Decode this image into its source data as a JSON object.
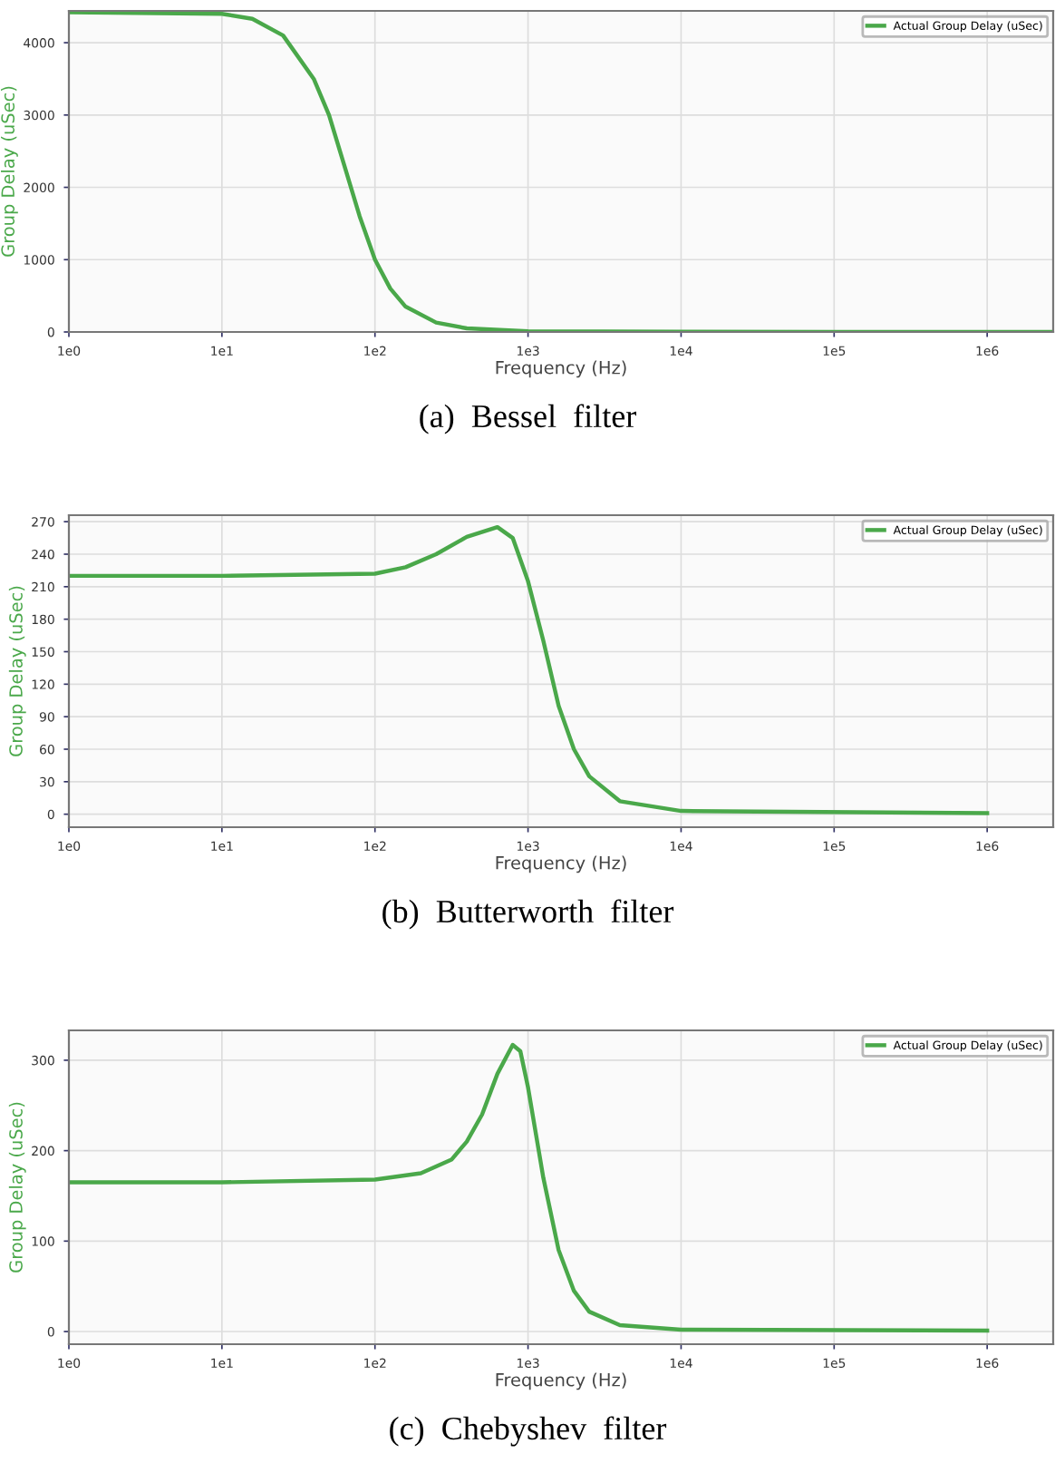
{
  "chart_data": [
    {
      "type": "line",
      "xlabel": "Frequency (Hz)",
      "ylabel": "Group Delay (uSec)",
      "log": "x",
      "xlim": [
        1,
        2700000
      ],
      "xticks": [
        {
          "value": 1,
          "label": "1e0"
        },
        {
          "value": 10,
          "label": "1e1"
        },
        {
          "value": 100,
          "label": "1e2"
        },
        {
          "value": 1000,
          "label": "1e3"
        },
        {
          "value": 10000,
          "label": "1e4"
        },
        {
          "value": 100000,
          "label": "1e5"
        },
        {
          "value": 1000000,
          "label": "1e6"
        }
      ],
      "ylim": [
        0,
        4440
      ],
      "yticks": [
        0,
        1000,
        2000,
        3000,
        4000
      ],
      "grid": true,
      "legend": "top right",
      "annotations": [
        "(a)  Bessel  filter"
      ],
      "series": [
        {
          "name": "Actual Group Delay (uSec)",
          "color": "#4aa84a",
          "x": [
            1,
            10,
            15.8,
            25.1,
            39.8,
            50.1,
            63.1,
            79.4,
            100,
            125.9,
            158.5,
            251,
            398,
            1000,
            10000,
            100000,
            2700000
          ],
          "values": [
            4420,
            4400,
            4330,
            4100,
            3500,
            3000,
            2300,
            1600,
            1000,
            600,
            350,
            130,
            50,
            10,
            2,
            1,
            0
          ]
        }
      ]
    },
    {
      "type": "line",
      "xlabel": "Frequency (Hz)",
      "ylabel": "Group Delay (uSec)",
      "log": "x",
      "xlim": [
        1,
        2700000
      ],
      "xticks": [
        {
          "value": 1,
          "label": "1e0"
        },
        {
          "value": 10,
          "label": "1e1"
        },
        {
          "value": 100,
          "label": "1e2"
        },
        {
          "value": 1000,
          "label": "1e3"
        },
        {
          "value": 10000,
          "label": "1e4"
        },
        {
          "value": 100000,
          "label": "1e5"
        },
        {
          "value": 1000000,
          "label": "1e6"
        }
      ],
      "ylim": [
        -12,
        276
      ],
      "yticks": [
        0,
        30,
        60,
        90,
        120,
        150,
        180,
        210,
        240,
        270
      ],
      "grid": true,
      "legend": "top right",
      "annotations": [
        "(b)  Butterworth  filter"
      ],
      "series": [
        {
          "name": "Actual Group Delay (uSec)",
          "color": "#4aa84a",
          "x": [
            1,
            10,
            100,
            158.5,
            251,
            398,
            631,
            794,
            1000,
            1259,
            1585,
            1995,
            2512,
            3981,
            10000,
            1000000
          ],
          "values": [
            220,
            220,
            222,
            228,
            240,
            256,
            265,
            255,
            215,
            160,
            100,
            60,
            35,
            12,
            3,
            1
          ]
        }
      ]
    },
    {
      "type": "line",
      "xlabel": "Frequency (Hz)",
      "ylabel": "Group Delay (uSec)",
      "log": "x",
      "xlim": [
        1,
        2700000
      ],
      "xticks": [
        {
          "value": 1,
          "label": "1e0"
        },
        {
          "value": 10,
          "label": "1e1"
        },
        {
          "value": 100,
          "label": "1e2"
        },
        {
          "value": 1000,
          "label": "1e3"
        },
        {
          "value": 10000,
          "label": "1e4"
        },
        {
          "value": 100000,
          "label": "1e5"
        },
        {
          "value": 1000000,
          "label": "1e6"
        }
      ],
      "ylim": [
        -14,
        333
      ],
      "yticks": [
        0,
        100,
        200,
        300
      ],
      "grid": true,
      "legend": "top right",
      "annotations": [
        "(c)  Chebyshev  filter"
      ],
      "series": [
        {
          "name": "Actual Group Delay (uSec)",
          "color": "#4aa84a",
          "x": [
            1,
            10,
            100,
            199.5,
            316,
            398,
            501,
            631,
            794,
            891,
            1000,
            1259,
            1585,
            1995,
            2512,
            3981,
            10000,
            1000000
          ],
          "values": [
            165,
            165,
            168,
            175,
            190,
            210,
            240,
            285,
            317,
            310,
            270,
            170,
            90,
            45,
            22,
            7,
            2,
            1
          ]
        }
      ]
    }
  ]
}
